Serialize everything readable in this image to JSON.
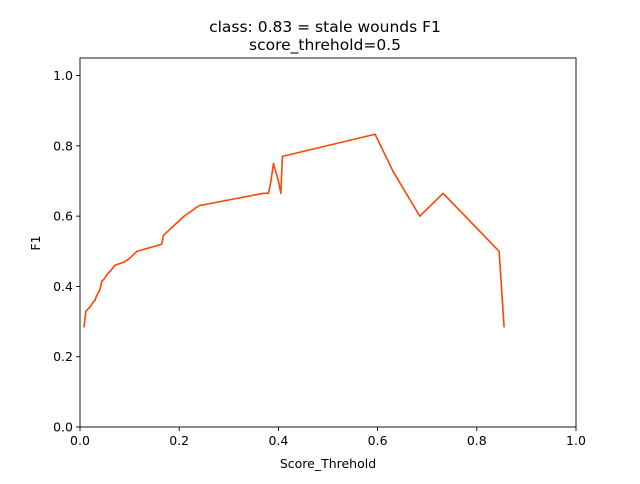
{
  "chart_data": {
    "type": "line",
    "title": "class: 0.83 = stale wounds F1",
    "subtitle": "score_threhold=0.5",
    "xlabel": "Score_Threhold",
    "ylabel": "F1",
    "xlim": [
      0.0,
      1.0
    ],
    "ylim": [
      0.0,
      1.05
    ],
    "xticks": [
      "0.0",
      "0.2",
      "0.4",
      "0.6",
      "0.8",
      "1.0"
    ],
    "yticks": [
      "0.0",
      "0.2",
      "0.4",
      "0.6",
      "0.8",
      "1.0"
    ],
    "grid": false,
    "line_color": "#ff4500",
    "series": [
      {
        "x": [
          0.008,
          0.012,
          0.016,
          0.022,
          0.026,
          0.03,
          0.034,
          0.04,
          0.044,
          0.048,
          0.055,
          0.062,
          0.07,
          0.08,
          0.09,
          0.1,
          0.115,
          0.165,
          0.168,
          0.21,
          0.24,
          0.37,
          0.38,
          0.385,
          0.39,
          0.4,
          0.405,
          0.408,
          0.595,
          0.632,
          0.685,
          0.732,
          0.845,
          0.855
        ],
        "y": [
          0.285,
          0.33,
          0.335,
          0.345,
          0.355,
          0.36,
          0.375,
          0.39,
          0.415,
          0.42,
          0.435,
          0.445,
          0.46,
          0.465,
          0.47,
          0.48,
          0.5,
          0.52,
          0.545,
          0.6,
          0.63,
          0.665,
          0.665,
          0.7,
          0.75,
          0.7,
          0.665,
          0.77,
          0.833,
          0.725,
          0.6,
          0.665,
          0.5,
          0.285
        ]
      }
    ]
  }
}
